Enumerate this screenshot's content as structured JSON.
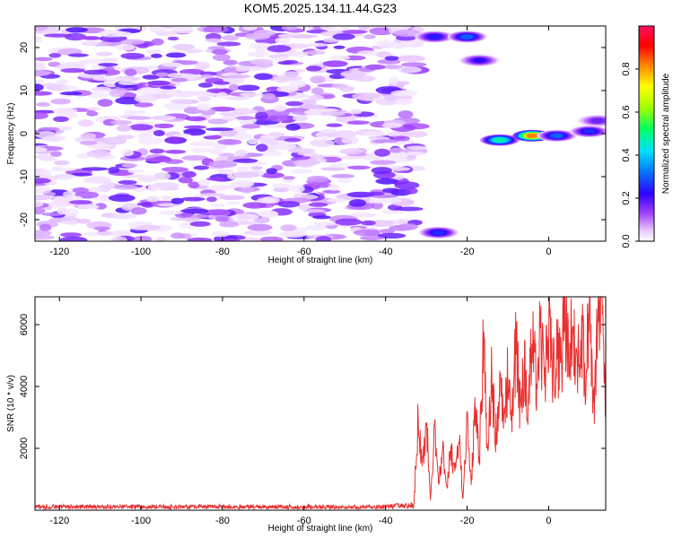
{
  "title": "KOM5.2025.134.11.44.G23",
  "chart_data": [
    {
      "type": "heatmap",
      "xlabel": "Height of straight line (km)",
      "ylabel": "Frequency (Hz)",
      "xlim": [
        -126,
        14
      ],
      "ylim": [
        -25,
        25
      ],
      "xticks": [
        -120,
        -100,
        -80,
        -60,
        -40,
        -20,
        0
      ],
      "yticks": [
        -20,
        -10,
        0,
        10,
        20
      ],
      "colorbar": {
        "label": "Normalized spectral amplitude",
        "range": [
          0,
          1
        ],
        "ticks": [
          "0.0",
          "0.2",
          "0.4",
          "0.6",
          "0.8"
        ],
        "colors": [
          "#ffffff",
          "#e8c8ff",
          "#a040ff",
          "#3000ff",
          "#0080ff",
          "#00e0ff",
          "#00ff60",
          "#a0ff00",
          "#ffff00",
          "#ff8000",
          "#ff0000",
          "#ff1060"
        ]
      },
      "noise_region": {
        "x": [
          -126,
          -32
        ],
        "y": [
          -25,
          25
        ],
        "level": [
          0.02,
          0.2
        ]
      },
      "hotspots": [
        {
          "x": -28,
          "y": 22.5,
          "amplitude": 0.28
        },
        {
          "x": -20,
          "y": 22.5,
          "amplitude": 0.35
        },
        {
          "x": -17,
          "y": 17,
          "amplitude": 0.25
        },
        {
          "x": -27,
          "y": -23,
          "amplitude": 0.3
        },
        {
          "x": -12,
          "y": -1.5,
          "amplitude": 0.55
        },
        {
          "x": -4,
          "y": -0.5,
          "amplitude": 0.95
        },
        {
          "x": 2,
          "y": -0.5,
          "amplitude": 0.35
        },
        {
          "x": 10,
          "y": 0.5,
          "amplitude": 0.3
        },
        {
          "x": 12,
          "y": 3,
          "amplitude": 0.2
        }
      ]
    },
    {
      "type": "line",
      "xlabel": "Height of straight line (km)",
      "ylabel": "SNR (10 * v/v)",
      "xlim": [
        -126,
        14
      ],
      "ylim": [
        0,
        6900
      ],
      "xticks": [
        -120,
        -100,
        -80,
        -60,
        -40,
        -20,
        0
      ],
      "yticks": [
        2000,
        4000,
        6000
      ],
      "line_color": "#e83030",
      "series": [
        {
          "x": [
            -126,
            -40,
            -33,
            -32,
            -31,
            -30,
            -29,
            -28,
            -27,
            -26,
            -25,
            -24,
            -23,
            -22,
            -21,
            -20,
            -19,
            -18,
            -17,
            -16,
            -15,
            -14,
            -13,
            -12,
            -11,
            -10,
            -9,
            -8,
            -7,
            -6,
            -5,
            -4,
            -3,
            -2,
            -1,
            0,
            1,
            2,
            3,
            4,
            5,
            6,
            7,
            8,
            9,
            10,
            11,
            12,
            13,
            14
          ],
          "y": [
            100,
            100,
            150,
            3000,
            1200,
            2900,
            300,
            2500,
            800,
            2200,
            600,
            2000,
            1100,
            2400,
            300,
            3200,
            800,
            3300,
            1500,
            5500,
            1700,
            4200,
            2300,
            4300,
            2600,
            4500,
            3000,
            5300,
            3400,
            4800,
            3600,
            5500,
            4000,
            5800,
            3900,
            6200,
            4200,
            5200,
            4500,
            6400,
            4700,
            6100,
            4600,
            6300,
            3700,
            6800,
            2800,
            6300,
            6900,
            3100
          ]
        }
      ]
    }
  ]
}
